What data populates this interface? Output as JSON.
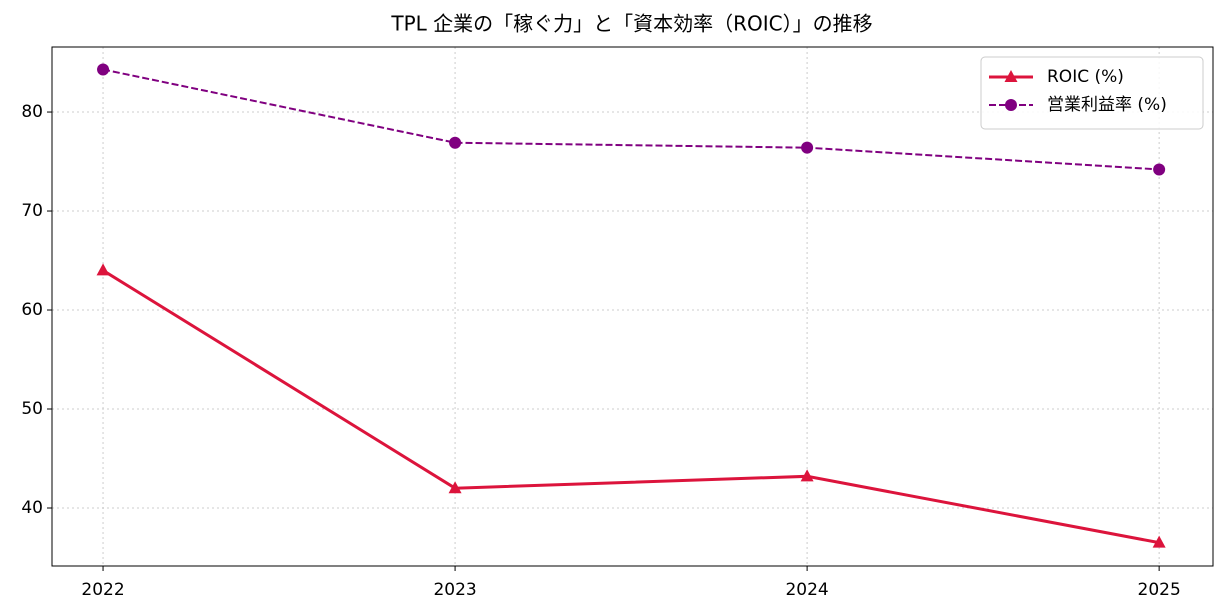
{
  "chart_data": {
    "type": "line",
    "title": "TPL 企業の「稼ぐ力」と「資本効率（ROIC）」の推移",
    "x": [
      2022,
      2023,
      2024,
      2025
    ],
    "series": [
      {
        "name": "ROIC (%)",
        "color": "#dc143c",
        "values": [
          64.0,
          42.0,
          43.2,
          36.5
        ],
        "marker": "triangle",
        "linestyle": "solid"
      },
      {
        "name": "営業利益率 (%)",
        "color": "#800080",
        "values": [
          84.3,
          76.9,
          76.4,
          74.2
        ],
        "marker": "circle",
        "linestyle": "dashed"
      }
    ],
    "xlim": [
      2021.855,
      2025.153
    ],
    "xticks": [
      2022,
      2023,
      2024,
      2025
    ],
    "ylim": [
      34.14,
      86.57
    ],
    "yticks": [
      40,
      50,
      60,
      70,
      80
    ],
    "grid": true,
    "legend": "upper-right"
  }
}
